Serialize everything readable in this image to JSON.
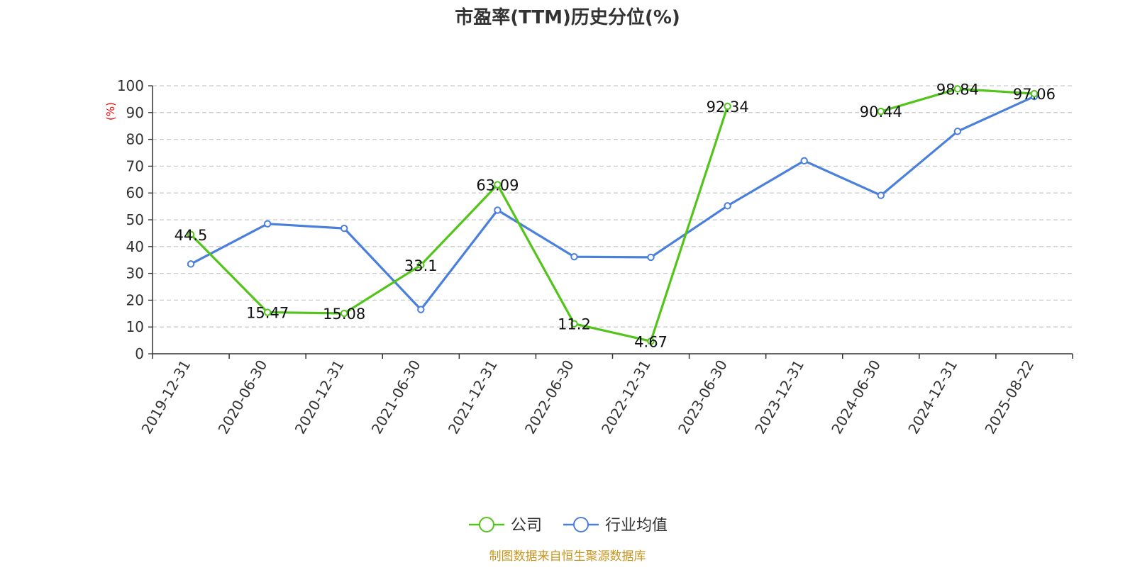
{
  "chart_data": {
    "type": "line",
    "title": "市盈率(TTM)历史分位(%)",
    "ylabel": "(%)",
    "xlabel": "",
    "ylim": [
      0,
      100
    ],
    "yticks": [
      0,
      10,
      20,
      30,
      40,
      50,
      60,
      70,
      80,
      90,
      100
    ],
    "categories": [
      "2019-12-31",
      "2020-06-30",
      "2020-12-31",
      "2021-06-30",
      "2021-12-31",
      "2022-06-30",
      "2022-12-31",
      "2023-06-30",
      "2023-12-31",
      "2024-06-30",
      "2024-12-31",
      "2025-08-22"
    ],
    "series": [
      {
        "name": "公司",
        "color": "#52c41a",
        "values": [
          44.5,
          15.47,
          15.08,
          33.1,
          63.09,
          11.2,
          4.67,
          92.34,
          null,
          90.44,
          98.84,
          97.06
        ],
        "labels": [
          "44.5",
          "15.47",
          "15.08",
          "33.1",
          "63.09",
          "11.2",
          "4.67",
          "92.34",
          "",
          "90.44",
          "98.84",
          "97.06"
        ]
      },
      {
        "name": "行业均值",
        "color": "#4a7fdb",
        "values": [
          33.5,
          48.5,
          46.8,
          16.5,
          53.6,
          36.2,
          36.0,
          55.2,
          72.0,
          59.1,
          83.0,
          96.0
        ]
      }
    ],
    "grid": true,
    "legend_position": "bottom-center",
    "source": "制图数据来自恒生聚源数据库",
    "colors": {
      "title": "#333333",
      "axis": "#333333",
      "grid": "#cccccc",
      "unit": "#ff0000",
      "source": "#c8961e"
    }
  }
}
